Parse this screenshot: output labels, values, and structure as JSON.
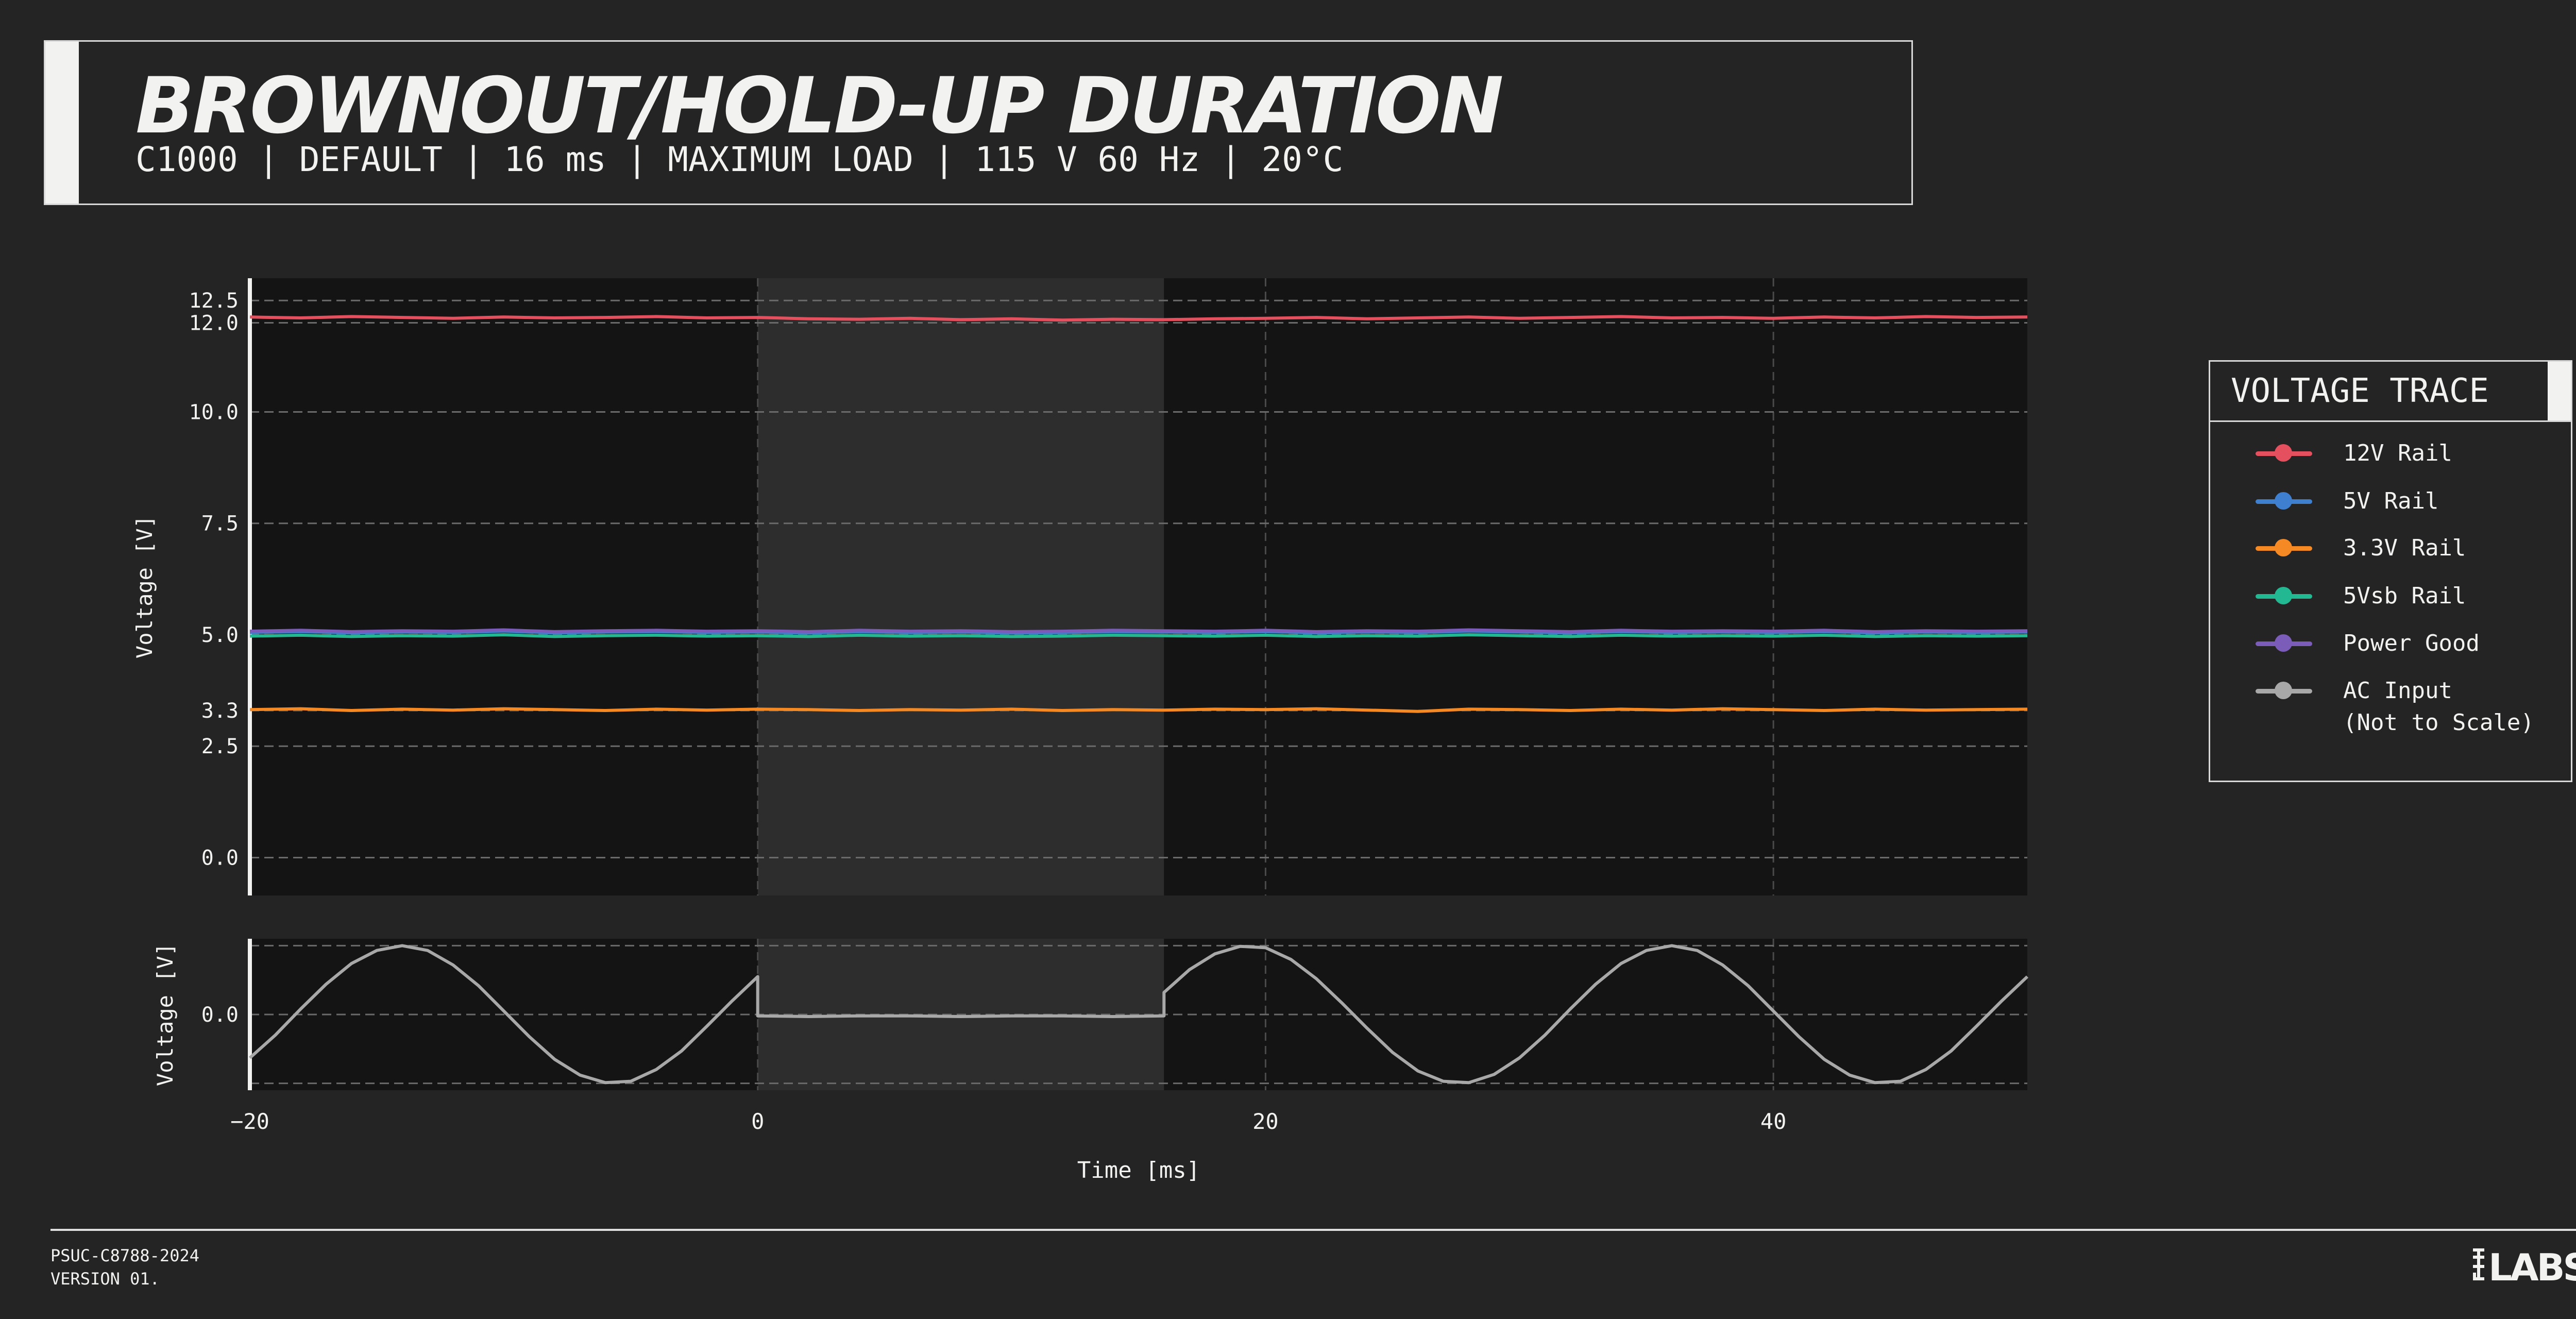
{
  "header": {
    "title": "BROWNOUT/HOLD-UP DURATION",
    "subtitle": "C1000 | DEFAULT | 16 ms | MAXIMUM LOAD | 115 V 60 Hz | 20°C"
  },
  "legend": {
    "title": "VOLTAGE TRACE",
    "items": [
      {
        "label": "12V Rail",
        "color": "#e5505e"
      },
      {
        "label": "5V Rail",
        "color": "#3f7fcf"
      },
      {
        "label": "3.3V Rail",
        "color": "#f58a24"
      },
      {
        "label": "5Vsb Rail",
        "color": "#22b892"
      },
      {
        "label": "Power Good",
        "color": "#7b5cb8"
      },
      {
        "label": "AC Input\n(Not to Scale)",
        "color": "#a8a8a8"
      }
    ]
  },
  "footer": {
    "code": "PSUC-C8788-2024",
    "version": "VERSION 01.",
    "logo_text": "LTT LABS"
  },
  "chart_data": [
    {
      "type": "line",
      "ylabel": "Voltage [V]",
      "xlim": [
        -20,
        50
      ],
      "ylim": [
        -0.85,
        13.0
      ],
      "yticks": [
        0.0,
        2.5,
        3.3,
        5.0,
        7.5,
        10.0,
        12.0,
        12.5
      ],
      "ytick_labels": [
        "0.0",
        "2.5",
        "3.3",
        "5.0",
        "7.5",
        "10.0",
        "12.0",
        "12.5"
      ],
      "xgrid": [
        0,
        20,
        40
      ],
      "grid": true,
      "shaded_interval": [
        0,
        16
      ],
      "x": [
        -20,
        -18,
        -16,
        -14,
        -12,
        -10,
        -8,
        -6,
        -4,
        -2,
        0,
        2,
        4,
        6,
        8,
        10,
        12,
        14,
        16,
        18,
        20,
        22,
        24,
        26,
        28,
        30,
        32,
        34,
        36,
        38,
        40,
        42,
        44,
        46,
        48,
        50
      ],
      "series": [
        {
          "name": "12V Rail",
          "color": "#e5505e",
          "values": [
            12.13,
            12.11,
            12.14,
            12.12,
            12.1,
            12.13,
            12.11,
            12.12,
            12.14,
            12.11,
            12.12,
            12.09,
            12.08,
            12.1,
            12.07,
            12.09,
            12.06,
            12.08,
            12.07,
            12.09,
            12.1,
            12.12,
            12.09,
            12.11,
            12.13,
            12.1,
            12.12,
            12.14,
            12.11,
            12.12,
            12.1,
            12.13,
            12.11,
            12.14,
            12.12,
            12.13
          ]
        },
        {
          "name": "5V Rail",
          "color": "#3f7fcf",
          "values": [
            5.05,
            5.07,
            5.04,
            5.06,
            5.05,
            5.08,
            5.04,
            5.06,
            5.07,
            5.05,
            5.06,
            5.04,
            5.07,
            5.05,
            5.06,
            5.04,
            5.05,
            5.07,
            5.06,
            5.05,
            5.07,
            5.04,
            5.06,
            5.05,
            5.08,
            5.06,
            5.04,
            5.07,
            5.05,
            5.06,
            5.05,
            5.07,
            5.04,
            5.06,
            5.05,
            5.06
          ]
        },
        {
          "name": "3.3V Rail",
          "color": "#f58a24",
          "values": [
            3.32,
            3.34,
            3.3,
            3.33,
            3.31,
            3.34,
            3.32,
            3.3,
            3.33,
            3.31,
            3.33,
            3.32,
            3.3,
            3.32,
            3.31,
            3.33,
            3.3,
            3.32,
            3.31,
            3.33,
            3.32,
            3.34,
            3.31,
            3.28,
            3.33,
            3.32,
            3.3,
            3.33,
            3.31,
            3.34,
            3.32,
            3.3,
            3.33,
            3.31,
            3.32,
            3.33
          ]
        },
        {
          "name": "5Vsb Rail",
          "color": "#22b892",
          "values": [
            4.97,
            4.99,
            4.96,
            4.98,
            4.97,
            5.0,
            4.96,
            4.98,
            4.99,
            4.97,
            4.98,
            4.96,
            4.99,
            4.97,
            4.98,
            4.96,
            4.97,
            4.99,
            4.98,
            4.97,
            4.99,
            4.96,
            4.98,
            4.97,
            5.0,
            4.98,
            4.96,
            4.99,
            4.97,
            4.98,
            4.97,
            4.99,
            4.96,
            4.98,
            4.97,
            4.98
          ]
        },
        {
          "name": "Power Good",
          "color": "#7b5cb8",
          "values": [
            5.08,
            5.1,
            5.07,
            5.09,
            5.08,
            5.11,
            5.07,
            5.09,
            5.1,
            5.08,
            5.09,
            5.07,
            5.1,
            5.08,
            5.09,
            5.07,
            5.08,
            5.1,
            5.09,
            5.08,
            5.1,
            5.07,
            5.09,
            5.08,
            5.11,
            5.09,
            5.07,
            5.1,
            5.08,
            5.09,
            5.08,
            5.1,
            5.07,
            5.09,
            5.08,
            5.09
          ]
        }
      ]
    },
    {
      "type": "line",
      "ylabel": "Voltage [V]",
      "xlabel": "Time [ms]",
      "xlim": [
        -20,
        50
      ],
      "ylim": [
        -1.1,
        1.1
      ],
      "yticks": [
        0.0
      ],
      "ytick_labels": [
        "0.0"
      ],
      "ygrid": [
        -1,
        0,
        1
      ],
      "xticks": [
        -20,
        0,
        20,
        40
      ],
      "xtick_labels": [
        "−20",
        "0",
        "20",
        "40"
      ],
      "xgrid": [
        0,
        20,
        40
      ],
      "grid": true,
      "shaded_interval": [
        0,
        16
      ],
      "series": [
        {
          "name": "AC Input",
          "color": "#a8a8a8",
          "x": [
            -20,
            -19,
            -18,
            -17,
            -16,
            -15,
            -14,
            -13,
            -12,
            -11,
            -10,
            -9,
            -8,
            -7,
            -6,
            -5,
            -4,
            -3,
            -2,
            -1,
            0,
            0,
            2,
            4,
            6,
            8,
            10,
            12,
            14,
            16,
            16,
            17,
            18,
            19,
            20,
            21,
            22,
            23,
            24,
            25,
            26,
            27,
            28,
            29,
            30,
            31,
            32,
            33,
            34,
            35,
            36,
            37,
            38,
            39,
            40,
            41,
            42,
            43,
            44,
            45,
            46,
            47,
            48,
            49,
            50
          ],
          "values": [
            -0.63,
            -0.3,
            0.08,
            0.44,
            0.74,
            0.93,
            1.0,
            0.93,
            0.72,
            0.42,
            0.05,
            -0.32,
            -0.65,
            -0.88,
            -0.99,
            -0.97,
            -0.8,
            -0.53,
            -0.17,
            0.2,
            0.55,
            -0.02,
            -0.03,
            -0.02,
            -0.02,
            -0.03,
            -0.02,
            -0.02,
            -0.03,
            -0.02,
            0.32,
            0.65,
            0.88,
            0.99,
            0.97,
            0.8,
            0.52,
            0.17,
            -0.2,
            -0.55,
            -0.82,
            -0.97,
            -0.99,
            -0.87,
            -0.63,
            -0.3,
            0.08,
            0.44,
            0.74,
            0.93,
            1.0,
            0.93,
            0.72,
            0.42,
            0.05,
            -0.32,
            -0.65,
            -0.88,
            -0.99,
            -0.97,
            -0.8,
            -0.53,
            -0.17,
            0.2,
            0.55
          ]
        }
      ]
    }
  ]
}
